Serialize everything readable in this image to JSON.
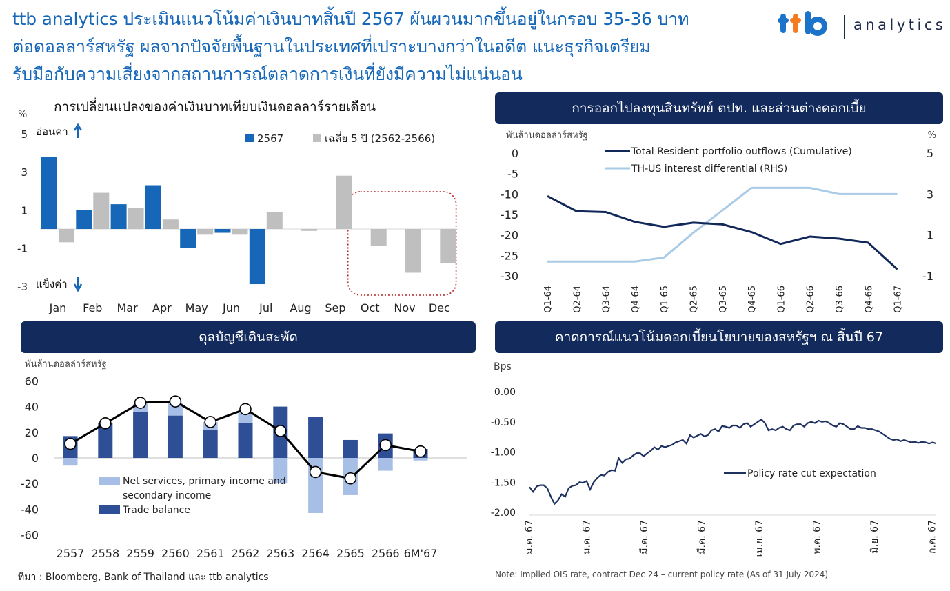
{
  "headline": {
    "line1": "ttb analytics ประเมินแนวโน้มค่าเงินบาทสิ้นปี  2567 ผันผวนมากขึ้นอยู่ในกรอบ  35-36 บาท",
    "line2": "ต่อดอลลาร์สหรัฐ ผลจากปัจจัยพื้นฐานในประเทศที่เปราะบางกว่าในอดีต  แนะธุรกิจเตรียม",
    "line3": "รับมือกับความเสี่ยงจากสถานการณ์ตลาดการเงินที่ยังมีความไม่แน่นอน"
  },
  "logo": {
    "mark": "ttb",
    "word": "analytics",
    "colors": {
      "t1": "#1b74c9",
      "t2": "#f47c20",
      "b": "#1b74c9"
    }
  },
  "colors": {
    "navy": "#132a5c",
    "blue2567": "#1667b8",
    "grey": "#bfbfbf",
    "dark_line": "#12285a",
    "light_line": "#a9cbe6",
    "trade": "#2e4e96",
    "services": "#a7bfe6",
    "ois": "#1e3160"
  },
  "source": "ที่มา : Bloomberg, Bank of Thailand และ ttb  analytics",
  "note": "Note: Implied OIS rate, contract Dec 24 – current policy rate (As of 31 July 2024)",
  "chart_data": [
    {
      "id": "thb_monthly",
      "type": "bar",
      "title": "การเปลี่ยนแปลงของค่าเงินบาทเทียบเงินดอลลาร์รายเดือน",
      "unit": "%",
      "weaken_label": "อ่อนค่า",
      "strengthen_label": "แข็งค่า",
      "categories": [
        "Jan",
        "Feb",
        "Mar",
        "Apr",
        "May",
        "Jun",
        "Jul",
        "Aug",
        "Sep",
        "Oct",
        "Nov",
        "Dec"
      ],
      "series": [
        {
          "name": "2567",
          "values": [
            3.8,
            1.0,
            1.3,
            2.3,
            -1.0,
            -0.2,
            -2.9,
            null,
            null,
            null,
            null,
            null
          ]
        },
        {
          "name": "เฉลี่ย 5 ปี (2562-2566)",
          "values": [
            -0.7,
            1.9,
            1.1,
            0.5,
            -0.3,
            -0.3,
            0.9,
            -0.1,
            2.8,
            -0.9,
            -2.3,
            -1.8
          ]
        }
      ],
      "yticks": [
        "5",
        "3",
        "1",
        "-1",
        "-3"
      ],
      "ylim": [
        -3,
        5
      ],
      "highlight": [
        "Oct",
        "Nov",
        "Dec"
      ]
    },
    {
      "id": "portfolio_outflows",
      "type": "line",
      "title": "การออกไปลงทุนสินทรัพย์ ตปท. และส่วนต่างดอกเบี้ย",
      "ylabel_left": "พันล้านดอลล่าร์สหรัฐ",
      "ylabel_right": "%",
      "x": [
        "Q1-64",
        "Q2-64",
        "Q3-64",
        "Q4-64",
        "Q1-65",
        "Q2-65",
        "Q3-65",
        "Q4-65",
        "Q1-66",
        "Q2-66",
        "Q3-66",
        "Q4-66",
        "Q1-67"
      ],
      "series": [
        {
          "name": "Total Resident portfolio outflows (Cumulative)",
          "axis": "left",
          "values": [
            -10.5,
            -14.2,
            -14.4,
            -16.8,
            -18.0,
            -17.0,
            -17.4,
            -19.3,
            -22.2,
            -20.4,
            -20.9,
            -21.9,
            -28.4
          ]
        },
        {
          "name": "TH-US interest differential (RHS)",
          "axis": "right",
          "values": [
            -0.3,
            -0.3,
            -0.3,
            -0.3,
            -0.1,
            1.1,
            2.2,
            3.3,
            3.3,
            3.3,
            3.0,
            3.0,
            3.0
          ]
        }
      ],
      "yticks_left": [
        "0",
        "-5",
        "-10",
        "-15",
        "-20",
        "-25",
        "-30"
      ],
      "yticks_right": [
        "5",
        "3",
        "1",
        "-1"
      ],
      "ylim_left": [
        -30,
        0
      ],
      "ylim_right": [
        -1,
        5
      ]
    },
    {
      "id": "current_account",
      "type": "bar",
      "title": "ดุลบัญชีเดินสะพัด",
      "ylabel": "พันล้านดอลล่าร์สหรัฐ",
      "categories": [
        "2557",
        "2558",
        "2559",
        "2560",
        "2561",
        "2562",
        "2563",
        "2564",
        "2565",
        "2566",
        "6M'67"
      ],
      "series": [
        {
          "name": "Trade balance",
          "values": [
            17,
            27,
            36,
            33,
            22,
            27,
            40,
            32,
            14,
            19,
            7
          ]
        },
        {
          "name": "Net services, primary income and secondary income",
          "values": [
            -6,
            0,
            6,
            10,
            6,
            9,
            -20,
            -43,
            -29,
            -10,
            -2
          ]
        },
        {
          "name": "Current account",
          "values": [
            11,
            27,
            43,
            44,
            28,
            38,
            21,
            -11,
            -16,
            10,
            5
          ]
        }
      ],
      "legend": [
        "Net services, primary income and",
        "secondary income",
        "Trade balance"
      ],
      "yticks": [
        "60",
        "40",
        "20",
        "0",
        "-20",
        "-40",
        "-60"
      ],
      "ylim": [
        -60,
        60
      ]
    },
    {
      "id": "policy_rate_expectation",
      "type": "line",
      "title": "คาดการณ์แนวโน้มดอกเบี้ยนโยบายของสหรัฐฯ  ณ สิ้นปี 67",
      "ylabel": "Bps",
      "x_ticks": [
        "ม.ค. 67",
        "ม.ค. 67",
        "มี.ค. 67",
        "มี.ค. 67",
        "เม.ย. 67",
        "พ.ค. 67",
        "มิ.ย. 67",
        "ก.ค. 67"
      ],
      "yticks": [
        "0.00",
        "-0.50",
        "-1.00",
        "-1.50",
        "-2.00"
      ],
      "ylim": [
        -2.0,
        0.0
      ],
      "series": [
        {
          "name": "Policy rate cut expectation",
          "values": [
            -1.58,
            -1.66,
            -1.57,
            -1.55,
            -1.55,
            -1.6,
            -1.74,
            -1.86,
            -1.8,
            -1.7,
            -1.74,
            -1.6,
            -1.56,
            -1.55,
            -1.5,
            -1.51,
            -1.48,
            -1.62,
            -1.5,
            -1.43,
            -1.38,
            -1.39,
            -1.33,
            -1.3,
            -1.31,
            -1.1,
            -1.18,
            -1.12,
            -1.11,
            -1.06,
            -1.02,
            -1.02,
            -1.07,
            -1.02,
            -0.98,
            -0.92,
            -0.96,
            -0.9,
            -0.92,
            -0.9,
            -0.88,
            -0.84,
            -0.82,
            -0.8,
            -0.86,
            -0.72,
            -0.76,
            -0.73,
            -0.7,
            -0.74,
            -0.72,
            -0.64,
            -0.62,
            -0.66,
            -0.57,
            -0.58,
            -0.6,
            -0.56,
            -0.56,
            -0.6,
            -0.54,
            -0.52,
            -0.58,
            -0.54,
            -0.5,
            -0.46,
            -0.52,
            -0.64,
            -0.62,
            -0.64,
            -0.6,
            -0.58,
            -0.62,
            -0.64,
            -0.56,
            -0.54,
            -0.54,
            -0.58,
            -0.52,
            -0.5,
            -0.52,
            -0.48,
            -0.5,
            -0.49,
            -0.52,
            -0.56,
            -0.58,
            -0.52,
            -0.54,
            -0.58,
            -0.62,
            -0.62,
            -0.57,
            -0.6,
            -0.6,
            -0.62,
            -0.62,
            -0.64,
            -0.66,
            -0.7,
            -0.74,
            -0.78,
            -0.8,
            -0.79,
            -0.82,
            -0.8,
            -0.82,
            -0.84,
            -0.83,
            -0.85,
            -0.83,
            -0.84,
            -0.86,
            -0.84,
            -0.86
          ]
        }
      ]
    }
  ]
}
